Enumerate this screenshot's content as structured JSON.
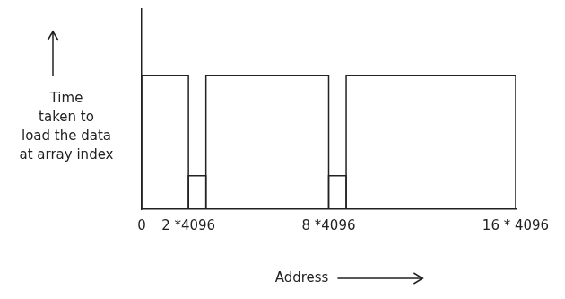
{
  "chart_data": {
    "type": "histogram",
    "bins": [
      0,
      8192,
      11264,
      32768,
      35840,
      65536
    ],
    "values": [
      1,
      0.25,
      1,
      0.25,
      1
    ],
    "colors": [
      "#ff6666",
      "#40c057",
      "#ff6666",
      "#40c057",
      "#ff6666"
    ],
    "xlabel": "Address",
    "ylabel": [
      "Time",
      "taken to",
      "load the data",
      "at array index"
    ],
    "xlim": [
      0,
      65536
    ],
    "ylim": [
      0,
      1.5
    ],
    "xticks": [
      {
        "value": 0,
        "label": "0"
      },
      {
        "value": 8192,
        "label": "2 *4096"
      },
      {
        "value": 32768,
        "label": "8 *4096"
      },
      {
        "value": 65536,
        "label": "16 * 4096"
      }
    ],
    "tick_labels": "x",
    "grid": false
  }
}
